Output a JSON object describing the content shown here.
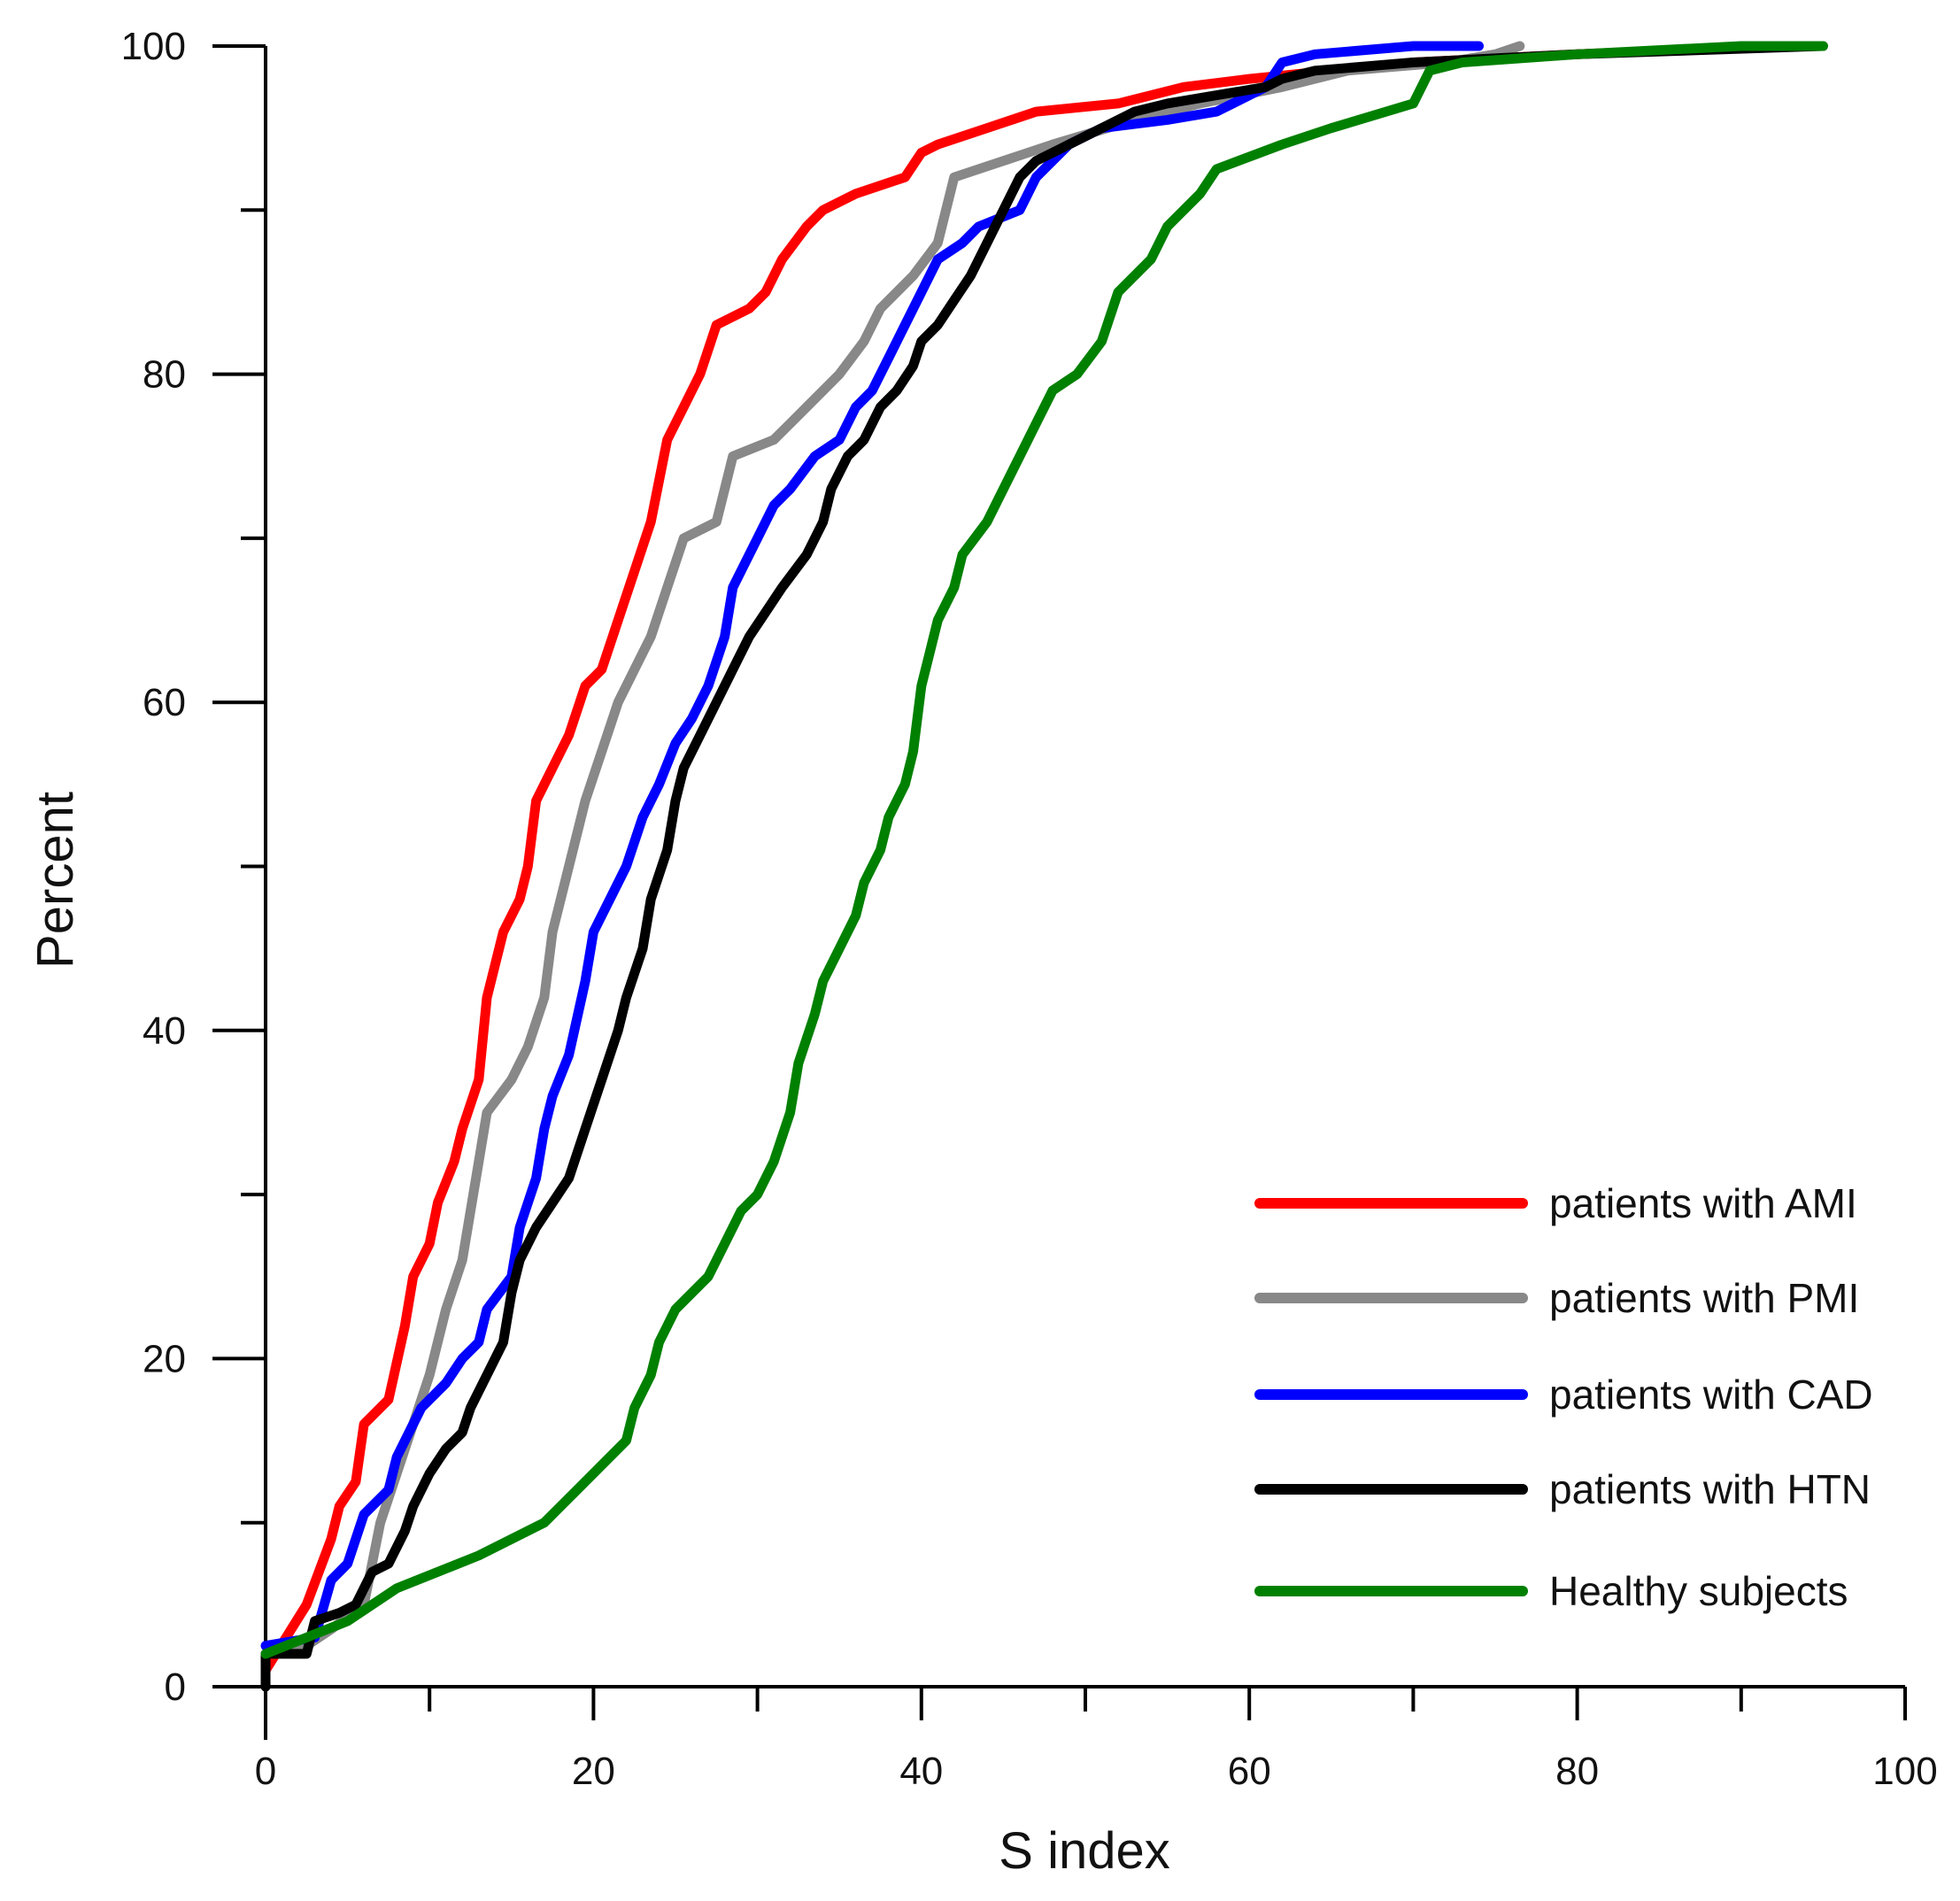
{
  "chart_data": {
    "type": "line",
    "title": "",
    "xlabel": "S index",
    "ylabel": "Percent",
    "xlim": [
      0,
      100
    ],
    "ylim": [
      0,
      100
    ],
    "xticks": [
      0,
      20,
      40,
      60,
      80,
      100
    ],
    "yticks": [
      0,
      20,
      40,
      60,
      80,
      100
    ],
    "x_minor_step": 10,
    "y_minor_step": 10,
    "grid": false,
    "legend_position": "bottom-right",
    "series": [
      {
        "name": "patients with AMI",
        "color": "#ff0000",
        "points": [
          [
            0,
            1
          ],
          [
            2.5,
            5
          ],
          [
            4,
            9
          ],
          [
            4.5,
            11
          ],
          [
            5.5,
            12.5
          ],
          [
            6,
            16
          ],
          [
            7.5,
            17.5
          ],
          [
            8.5,
            22
          ],
          [
            9,
            25
          ],
          [
            10,
            27
          ],
          [
            10.5,
            29.5
          ],
          [
            11.5,
            32
          ],
          [
            12,
            34
          ],
          [
            13,
            37
          ],
          [
            13.5,
            42
          ],
          [
            14.5,
            46
          ],
          [
            15.5,
            48
          ],
          [
            16,
            50
          ],
          [
            16.5,
            54
          ],
          [
            17.5,
            56
          ],
          [
            18.5,
            58
          ],
          [
            19.5,
            61
          ],
          [
            20.5,
            62
          ],
          [
            21.5,
            65
          ],
          [
            22.5,
            68
          ],
          [
            23.5,
            71
          ],
          [
            24.5,
            76
          ],
          [
            25.5,
            78
          ],
          [
            26.5,
            80
          ],
          [
            27.5,
            83
          ],
          [
            29.5,
            84
          ],
          [
            30.5,
            85
          ],
          [
            31.5,
            87
          ],
          [
            33,
            89
          ],
          [
            34,
            90
          ],
          [
            36,
            91
          ],
          [
            39,
            92
          ],
          [
            40,
            93.5
          ],
          [
            41,
            94
          ],
          [
            44,
            95
          ],
          [
            47,
            96
          ],
          [
            52,
            96.5
          ],
          [
            56,
            97.5
          ],
          [
            60,
            98
          ],
          [
            70,
            99
          ],
          [
            80,
            99.5
          ],
          [
            92,
            100
          ]
        ]
      },
      {
        "name": "patients with PMI",
        "color": "#888888",
        "points": [
          [
            0,
            2
          ],
          [
            2.5,
            2.5
          ],
          [
            4,
            3.5
          ],
          [
            6,
            5
          ],
          [
            7,
            10
          ],
          [
            8,
            13
          ],
          [
            9,
            16
          ],
          [
            10,
            19
          ],
          [
            11,
            23
          ],
          [
            12,
            26
          ],
          [
            13,
            32
          ],
          [
            13.5,
            35
          ],
          [
            15,
            37
          ],
          [
            16,
            39
          ],
          [
            17,
            42
          ],
          [
            17.5,
            46
          ],
          [
            18.5,
            50
          ],
          [
            19.5,
            54
          ],
          [
            20.5,
            57
          ],
          [
            21.5,
            60
          ],
          [
            22.5,
            62
          ],
          [
            23.5,
            64
          ],
          [
            24.5,
            67
          ],
          [
            25.5,
            70
          ],
          [
            27.5,
            71
          ],
          [
            28,
            73
          ],
          [
            28.5,
            75
          ],
          [
            31,
            76
          ],
          [
            33,
            78
          ],
          [
            35,
            80
          ],
          [
            36.5,
            82
          ],
          [
            37.5,
            84
          ],
          [
            39.5,
            86
          ],
          [
            41,
            88
          ],
          [
            42,
            92
          ],
          [
            45,
            93
          ],
          [
            48,
            94
          ],
          [
            53,
            95.5
          ],
          [
            57,
            96.5
          ],
          [
            62,
            97.5
          ],
          [
            66,
            98.5
          ],
          [
            72,
            99
          ],
          [
            75,
            99.5
          ],
          [
            76.5,
            100
          ]
        ]
      },
      {
        "name": "patients with CAD",
        "color": "#0000ff",
        "points": [
          [
            0,
            2.5
          ],
          [
            3,
            3
          ],
          [
            4,
            6.5
          ],
          [
            5,
            7.5
          ],
          [
            6,
            10.5
          ],
          [
            7.5,
            12
          ],
          [
            8,
            14
          ],
          [
            9.5,
            17
          ],
          [
            11,
            18.5
          ],
          [
            12,
            20
          ],
          [
            13,
            21
          ],
          [
            13.5,
            23
          ],
          [
            15,
            25
          ],
          [
            15.5,
            28
          ],
          [
            16.5,
            31
          ],
          [
            17,
            34
          ],
          [
            17.5,
            36
          ],
          [
            18.5,
            38.5
          ],
          [
            19.5,
            43
          ],
          [
            20,
            46
          ],
          [
            21,
            48
          ],
          [
            22,
            50
          ],
          [
            23,
            53
          ],
          [
            24,
            55
          ],
          [
            25,
            57.5
          ],
          [
            26,
            59
          ],
          [
            27,
            61
          ],
          [
            28,
            64
          ],
          [
            28.5,
            67
          ],
          [
            30,
            70
          ],
          [
            31,
            72
          ],
          [
            32,
            73
          ],
          [
            33.5,
            75
          ],
          [
            35,
            76
          ],
          [
            36,
            78
          ],
          [
            37,
            79
          ],
          [
            38,
            81
          ],
          [
            39,
            83
          ],
          [
            40,
            85
          ],
          [
            41,
            87
          ],
          [
            42.5,
            88
          ],
          [
            43.5,
            89
          ],
          [
            46,
            90
          ],
          [
            47,
            92
          ],
          [
            49,
            94
          ],
          [
            51,
            95
          ],
          [
            55,
            95.5
          ],
          [
            58,
            96
          ],
          [
            61,
            97.5
          ],
          [
            62,
            99
          ],
          [
            64,
            99.5
          ],
          [
            70,
            100
          ],
          [
            74,
            100
          ]
        ]
      },
      {
        "name": "patients with HTN",
        "color": "#000000",
        "points": [
          [
            0,
            0
          ],
          [
            0,
            2
          ],
          [
            2.5,
            2
          ],
          [
            3,
            4
          ],
          [
            4.5,
            4.5
          ],
          [
            5.5,
            5
          ],
          [
            6.5,
            7
          ],
          [
            7.5,
            7.5
          ],
          [
            8.5,
            9.5
          ],
          [
            9,
            11
          ],
          [
            10,
            13
          ],
          [
            11,
            14.5
          ],
          [
            12,
            15.5
          ],
          [
            12.5,
            17
          ],
          [
            13.5,
            19
          ],
          [
            14.5,
            21
          ],
          [
            15,
            24
          ],
          [
            15.5,
            26
          ],
          [
            16.5,
            28
          ],
          [
            17.5,
            29.5
          ],
          [
            18.5,
            31
          ],
          [
            19.5,
            34
          ],
          [
            20.5,
            37
          ],
          [
            21.5,
            40
          ],
          [
            22,
            42
          ],
          [
            23,
            45
          ],
          [
            23.5,
            48
          ],
          [
            24.5,
            51
          ],
          [
            25,
            54
          ],
          [
            25.5,
            56
          ],
          [
            26.5,
            58
          ],
          [
            27.5,
            60
          ],
          [
            28.5,
            62
          ],
          [
            29.5,
            64
          ],
          [
            30.5,
            65.5
          ],
          [
            31.5,
            67
          ],
          [
            33,
            69
          ],
          [
            34,
            71
          ],
          [
            34.5,
            73
          ],
          [
            35.5,
            75
          ],
          [
            36.5,
            76
          ],
          [
            37.5,
            78
          ],
          [
            38.5,
            79
          ],
          [
            39.5,
            80.5
          ],
          [
            40,
            82
          ],
          [
            41,
            83
          ],
          [
            42,
            84.5
          ],
          [
            43,
            86
          ],
          [
            44,
            88
          ],
          [
            45,
            90
          ],
          [
            46,
            92
          ],
          [
            47,
            93
          ],
          [
            48,
            93.5
          ],
          [
            50,
            94.5
          ],
          [
            51,
            95
          ],
          [
            52,
            95.5
          ],
          [
            53,
            96
          ],
          [
            55,
            96.5
          ],
          [
            58,
            97
          ],
          [
            61,
            97.5
          ],
          [
            62,
            98
          ],
          [
            64,
            98.5
          ],
          [
            70,
            99
          ],
          [
            80,
            99.5
          ],
          [
            95,
            100
          ]
        ]
      },
      {
        "name": "Healthy subjects",
        "color": "#008000",
        "points": [
          [
            0,
            2
          ],
          [
            5,
            4
          ],
          [
            8,
            6
          ],
          [
            13,
            8
          ],
          [
            17,
            10
          ],
          [
            19,
            12
          ],
          [
            22,
            15
          ],
          [
            22.5,
            17
          ],
          [
            23.5,
            19
          ],
          [
            24,
            21
          ],
          [
            25,
            23
          ],
          [
            27,
            25
          ],
          [
            28,
            27
          ],
          [
            29,
            29
          ],
          [
            30,
            30
          ],
          [
            31,
            32
          ],
          [
            32,
            35
          ],
          [
            32.5,
            38
          ],
          [
            33.5,
            41
          ],
          [
            34,
            43
          ],
          [
            35,
            45
          ],
          [
            36,
            47
          ],
          [
            36.5,
            49
          ],
          [
            37.5,
            51
          ],
          [
            38,
            53
          ],
          [
            39,
            55
          ],
          [
            39.5,
            57
          ],
          [
            40,
            61
          ],
          [
            40.5,
            63
          ],
          [
            41,
            65
          ],
          [
            42,
            67
          ],
          [
            42.5,
            69
          ],
          [
            44,
            71
          ],
          [
            45,
            73
          ],
          [
            46,
            75
          ],
          [
            47,
            77
          ],
          [
            48,
            79
          ],
          [
            49.5,
            80
          ],
          [
            51,
            82
          ],
          [
            52,
            85
          ],
          [
            54,
            87
          ],
          [
            55,
            89
          ],
          [
            57,
            91
          ],
          [
            58,
            92.5
          ],
          [
            62,
            94
          ],
          [
            65,
            95
          ],
          [
            70,
            96.5
          ],
          [
            71,
            98.5
          ],
          [
            73,
            99
          ],
          [
            80,
            99.5
          ],
          [
            90,
            100
          ],
          [
            95,
            100
          ]
        ]
      }
    ]
  }
}
